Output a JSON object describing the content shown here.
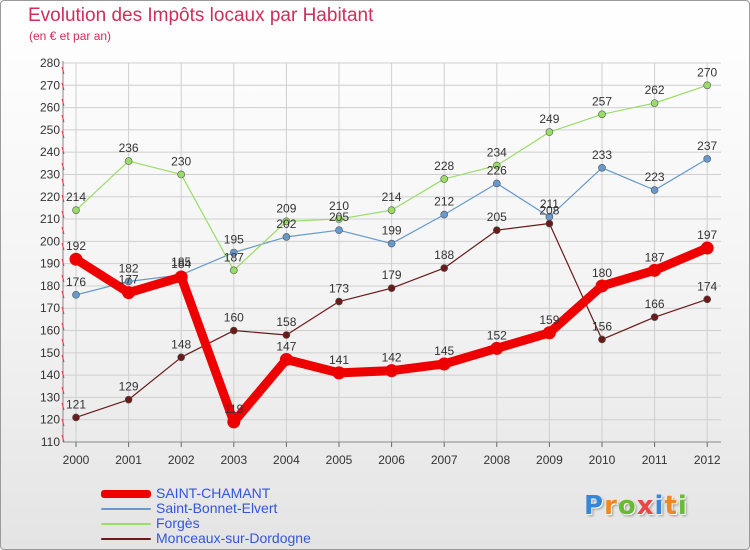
{
  "title": "Evolution des Impôts locaux par Habitant",
  "subtitle": "(en € et par an)",
  "logo": {
    "letters": [
      {
        "ch": "P",
        "color": "#3388dd"
      },
      {
        "ch": "r",
        "color": "#ee8822"
      },
      {
        "ch": "o",
        "color": "#66bb33"
      },
      {
        "ch": "x",
        "color": "#ee4444"
      },
      {
        "ch": "i",
        "color": "#3388dd"
      },
      {
        "ch": "t",
        "color": "#ee8822"
      },
      {
        "ch": "i",
        "color": "#66bb33"
      }
    ]
  },
  "chart_data": {
    "type": "line",
    "title": "Evolution des Impôts locaux par Habitant",
    "subtitle": "(en € et par an)",
    "x": [
      "2000",
      "2001",
      "2002",
      "2003",
      "2004",
      "2005",
      "2006",
      "2007",
      "2008",
      "2009",
      "2010",
      "2011",
      "2012"
    ],
    "ylim": [
      110,
      280
    ],
    "yticks": [
      110,
      120,
      130,
      140,
      150,
      160,
      170,
      180,
      190,
      200,
      210,
      220,
      230,
      240,
      250,
      260,
      270,
      280
    ],
    "grid": true,
    "legend_position": "bottom-left",
    "series": [
      {
        "name": "SAINT-CHAMANT",
        "color": "#ee0000",
        "width": 9,
        "values": [
          192,
          177,
          184,
          119,
          147,
          141,
          142,
          145,
          152,
          159,
          180,
          187,
          197
        ],
        "labels": [
          "192",
          "177",
          "184",
          "119",
          "147",
          "141",
          "142",
          "145",
          "152",
          "159",
          "180",
          "187",
          "197"
        ]
      },
      {
        "name": "Saint-Bonnet-Elvert",
        "color": "#6699cc",
        "width": 1.2,
        "values": [
          176,
          182,
          185,
          195,
          202,
          205,
          199,
          212,
          226,
          211,
          233,
          223,
          237
        ],
        "labels": [
          "176",
          "182",
          "185",
          "195",
          "202",
          "205",
          "199",
          "212",
          "226",
          "211",
          "233",
          "223",
          "237"
        ]
      },
      {
        "name": "Forgès",
        "color": "#99dd66",
        "width": 1.2,
        "values": [
          214,
          236,
          230,
          187,
          209,
          210,
          214,
          228,
          234,
          249,
          257,
          262,
          270
        ],
        "labels": [
          "214",
          "236",
          "230",
          "187",
          "209",
          "210",
          "214",
          "228",
          "234",
          "249",
          "257",
          "262",
          "270"
        ]
      },
      {
        "name": "Monceaux-sur-Dordogne",
        "color": "#6b1a1a",
        "width": 1.2,
        "values": [
          121,
          129,
          148,
          160,
          158,
          173,
          179,
          188,
          205,
          208,
          156,
          166,
          174
        ],
        "labels": [
          "121",
          "129",
          "148",
          "160",
          "158",
          "173",
          "179",
          "188",
          "205",
          "208",
          "156",
          "166",
          "174"
        ]
      }
    ]
  }
}
